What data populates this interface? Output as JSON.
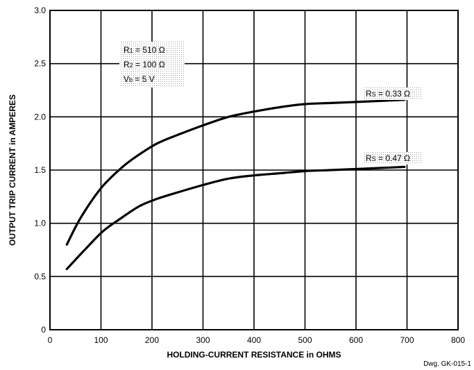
{
  "chart_data": {
    "type": "line",
    "title": "",
    "xlabel": "HOLDING-CURRENT RESISTANCE in OHMS",
    "ylabel": "OUTPUT TRIP CURRENT in AMPERES",
    "xlim": [
      0,
      800
    ],
    "ylim": [
      0,
      3.0
    ],
    "x_ticks": [
      "0",
      "100",
      "200",
      "300",
      "400",
      "500",
      "600",
      "700",
      "800"
    ],
    "y_ticks": [
      "0",
      "0.5",
      "1.0",
      "1.5",
      "2.0",
      "2.5",
      "3.0"
    ],
    "grid": true,
    "series": [
      {
        "name": "Rs = 0.33 Ω",
        "x": [
          33,
          60,
          100,
          140,
          170,
          210,
          250,
          300,
          350,
          400,
          450,
          500,
          550,
          600,
          650,
          695
        ],
        "y": [
          0.8,
          1.05,
          1.33,
          1.52,
          1.63,
          1.75,
          1.83,
          1.92,
          2.0,
          2.05,
          2.09,
          2.12,
          2.13,
          2.14,
          2.15,
          2.16
        ]
      },
      {
        "name": "Rs = 0.47 Ω",
        "x": [
          33,
          70,
          105,
          140,
          175,
          210,
          250,
          300,
          350,
          400,
          450,
          500,
          550,
          600,
          650,
          695
        ],
        "y": [
          0.57,
          0.76,
          0.93,
          1.05,
          1.16,
          1.23,
          1.29,
          1.36,
          1.42,
          1.45,
          1.47,
          1.49,
          1.5,
          1.51,
          1.52,
          1.53
        ]
      }
    ],
    "annotations": {
      "params": [
        {
          "symbol": "R",
          "sub": "1",
          "value": " = 510 Ω"
        },
        {
          "symbol": "R",
          "sub": "2",
          "value": " = 100 Ω"
        },
        {
          "symbol": "V",
          "sub": "b",
          "value": " = 5 V"
        }
      ],
      "labels": [
        {
          "symbol": "R",
          "sub": "S",
          "value": " = 0.33 Ω"
        },
        {
          "symbol": "R",
          "sub": "S",
          "value": " = 0.47 Ω"
        }
      ]
    },
    "drawing_number": "Dwg. GK-015-1"
  }
}
